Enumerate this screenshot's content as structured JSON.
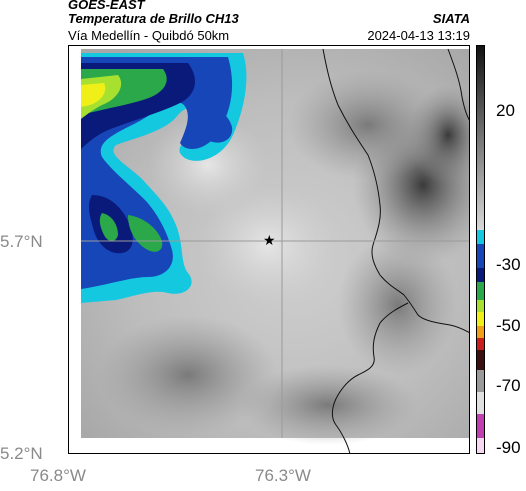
{
  "header": {
    "product": "GOES-EAST",
    "variable": "Temperatura de Brillo CH13",
    "route": "Vía Medellín - Quibdó 50km",
    "organization": "SIATA",
    "datetime": "2024-04-13 13:19"
  },
  "map": {
    "latitude_labels": [
      "5.7°N",
      "5.2°N"
    ],
    "longitude_labels": [
      "76.8°W",
      "76.3°W"
    ],
    "marker_icon": "star-icon"
  },
  "colorbar": {
    "ticks": [
      "20",
      "-30",
      "-50",
      "-70",
      "-90"
    ],
    "colors": {
      "dark_gray": "#1a1a1a",
      "light_gray": "#d8d8d8",
      "cyan": "#14c8e0",
      "blue": "#1646b8",
      "navy": "#0a1a7a",
      "green": "#2aa84a",
      "yellow": "#f0f018",
      "orange": "#f07818",
      "red": "#c81e1e",
      "magenta": "#c040b0"
    }
  }
}
